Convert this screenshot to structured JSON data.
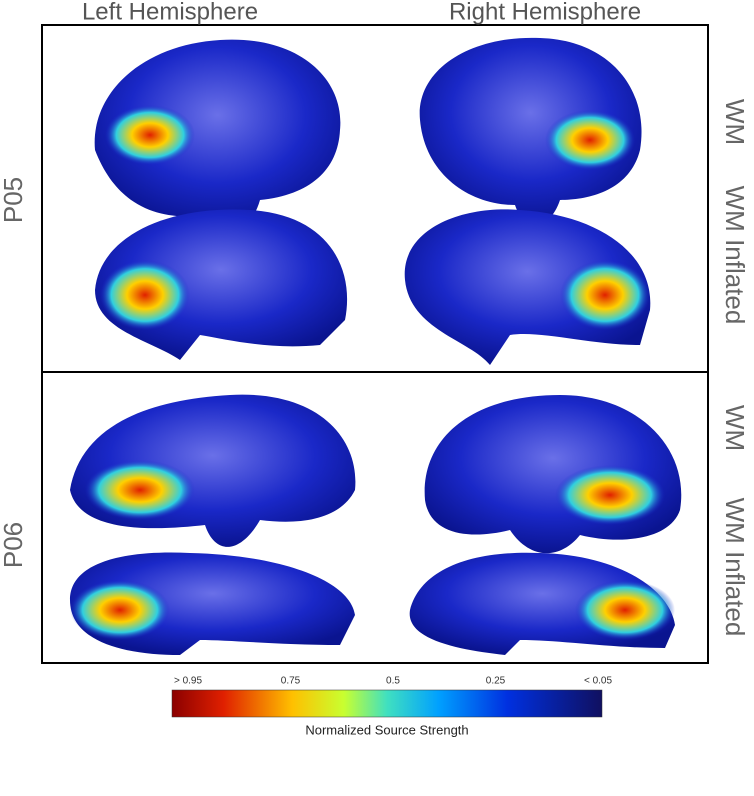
{
  "columns": [
    "Left Hemisphere",
    "Right Hemisphere"
  ],
  "rows": [
    {
      "label": "P05",
      "views": [
        "WM",
        "WM Inflated"
      ]
    },
    {
      "label": "P06",
      "views": [
        "WM",
        "WM Inflated"
      ]
    }
  ],
  "colorbar": {
    "ticks": [
      "> 0.95",
      "0.75",
      "0.5",
      "0.25",
      "< 0.05"
    ],
    "title": "Normalized Source Strength"
  }
}
